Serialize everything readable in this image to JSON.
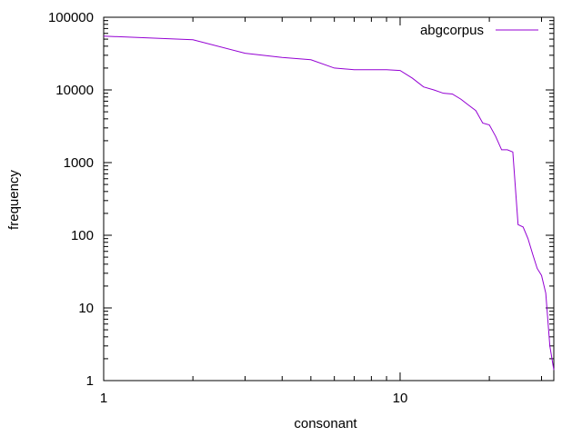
{
  "chart_data": {
    "type": "line",
    "xscale": "log",
    "yscale": "log",
    "xlabel": "consonant",
    "ylabel": "frequency",
    "xlim": [
      1,
      33
    ],
    "ylim": [
      1,
      100000
    ],
    "grid": false,
    "legend_position": "top-right",
    "x_ticks": [
      {
        "value": 1,
        "label": "1"
      },
      {
        "value": 10,
        "label": "10"
      }
    ],
    "y_ticks": [
      {
        "value": 1,
        "label": "1"
      },
      {
        "value": 10,
        "label": "10"
      },
      {
        "value": 100,
        "label": "100"
      },
      {
        "value": 1000,
        "label": "1000"
      },
      {
        "value": 10000,
        "label": "10000"
      },
      {
        "value": 100000,
        "label": "100000"
      }
    ],
    "series": [
      {
        "name": "abgcorpus",
        "color": "#9400d3",
        "x": [
          1,
          2,
          3,
          4,
          5,
          6,
          7,
          8,
          9,
          10,
          11,
          12,
          13,
          14,
          15,
          16,
          17,
          18,
          19,
          20,
          21,
          22,
          23,
          24,
          25,
          26,
          27,
          28,
          29,
          30,
          31,
          32,
          33
        ],
        "y": [
          55000,
          49000,
          32000,
          28000,
          26000,
          20000,
          19000,
          19000,
          19000,
          18500,
          14500,
          11000,
          10000,
          9000,
          8800,
          7500,
          6200,
          5200,
          3500,
          3300,
          2300,
          1500,
          1500,
          1400,
          140,
          130,
          90,
          55,
          35,
          28,
          16,
          3,
          1.4
        ]
      }
    ]
  }
}
